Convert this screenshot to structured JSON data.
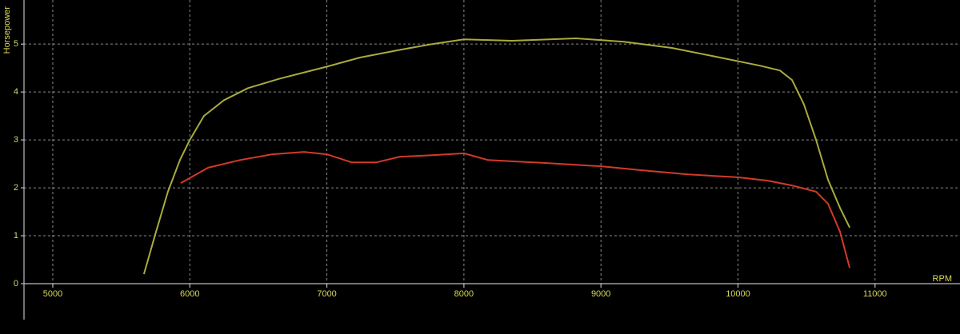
{
  "chart_data": {
    "type": "line",
    "y_label": "Horsepower",
    "x_label": "RPM",
    "xlim": [
      4790,
      11620
    ],
    "ylim": [
      0,
      5.92
    ],
    "xticks": [
      5000,
      6000,
      7000,
      8000,
      9000,
      10000,
      11000
    ],
    "yticks": [
      0,
      1,
      2,
      3,
      4,
      5
    ],
    "grid": true,
    "series": [
      {
        "color": "#a9ab3e",
        "x": [
          5665,
          5753,
          5840,
          5928,
          6000,
          6103,
          6250,
          6424,
          6658,
          7000,
          7242,
          7533,
          7767,
          8000,
          8350,
          8818,
          9168,
          9518,
          9868,
          10160,
          10306,
          10394,
          10480,
          10570,
          10657,
          10745,
          10815
        ],
        "values": [
          0.2,
          1.08,
          1.92,
          2.58,
          3.0,
          3.5,
          3.83,
          4.08,
          4.28,
          4.53,
          4.72,
          4.88,
          5.0,
          5.1,
          5.07,
          5.12,
          5.05,
          4.92,
          4.72,
          4.55,
          4.45,
          4.25,
          3.75,
          3.0,
          2.17,
          1.58,
          1.17
        ]
      },
      {
        "color": "#d23a2a",
        "x": [
          5934,
          6133,
          6366,
          6600,
          6833,
          7000,
          7183,
          7358,
          7533,
          7767,
          8000,
          8176,
          8584,
          9000,
          9285,
          9635,
          10000,
          10219,
          10394,
          10570,
          10657,
          10745,
          10815
        ],
        "values": [
          2.1,
          2.42,
          2.58,
          2.7,
          2.75,
          2.7,
          2.53,
          2.53,
          2.65,
          2.68,
          2.72,
          2.58,
          2.52,
          2.45,
          2.37,
          2.28,
          2.22,
          2.15,
          2.05,
          1.92,
          1.67,
          1.08,
          0.33
        ]
      }
    ]
  }
}
